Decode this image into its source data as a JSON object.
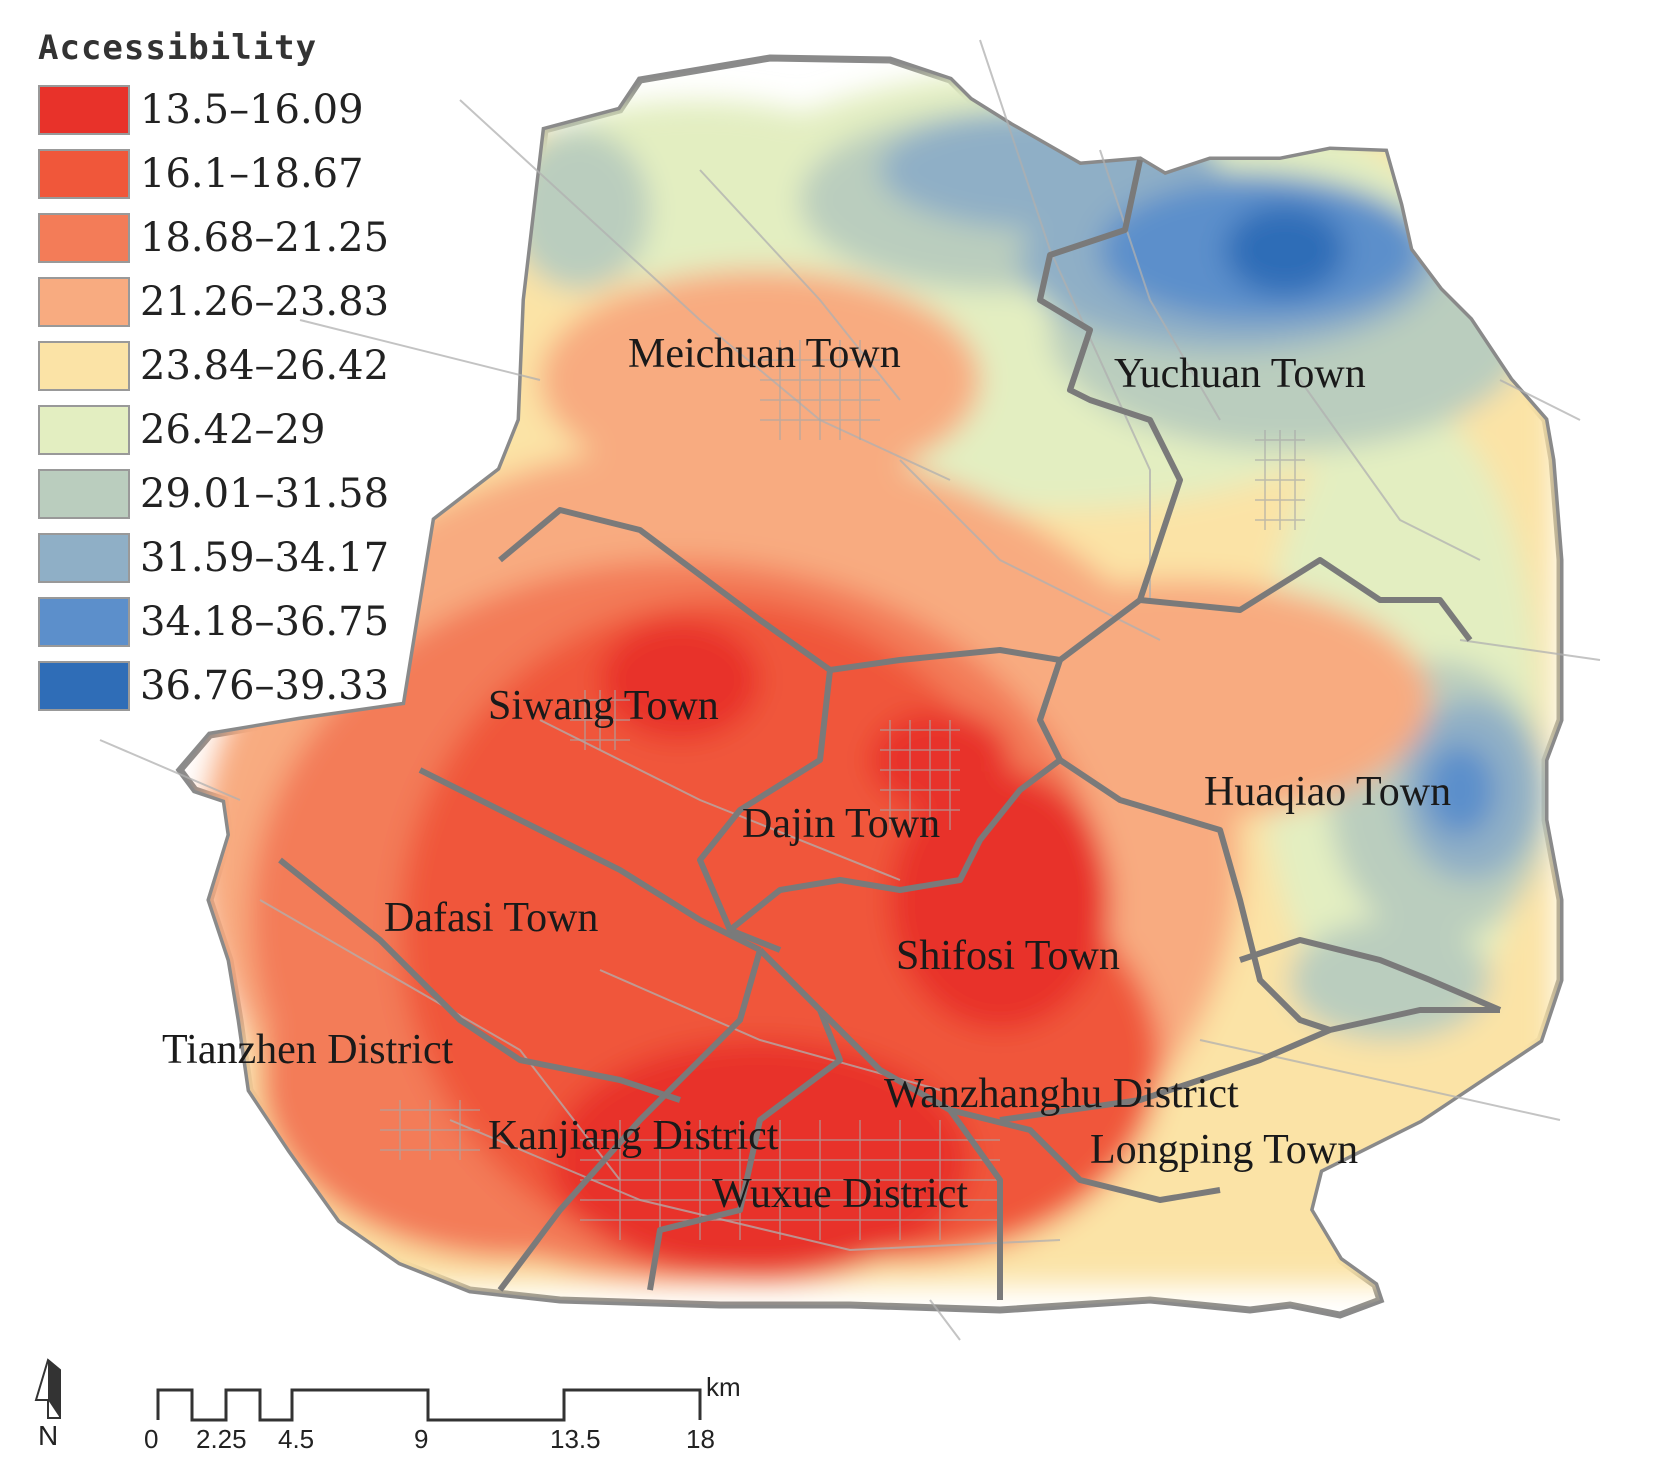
{
  "legend": {
    "title": "Accessibility",
    "classes": [
      {
        "label": "13.5–16.09",
        "color": "#e8322a"
      },
      {
        "label": "16.1–18.67",
        "color": "#f0573a"
      },
      {
        "label": "18.68–21.25",
        "color": "#f37c58"
      },
      {
        "label": "21.26–23.83",
        "color": "#f8ab80"
      },
      {
        "label": "23.84–26.42",
        "color": "#fbe3a6"
      },
      {
        "label": "26.42–29",
        "color": "#e3eec1"
      },
      {
        "label": "29.01–31.58",
        "color": "#bacdbe"
      },
      {
        "label": "31.59–34.17",
        "color": "#8fafc6"
      },
      {
        "label": "34.18–36.75",
        "color": "#5c8fcb"
      },
      {
        "label": "36.76–39.33",
        "color": "#2f6db7"
      }
    ]
  },
  "places": {
    "meichuan": "Meichuan Town",
    "yuchuan": "Yuchuan Town",
    "siwang": "Siwang Town",
    "huaqiao": "Huaqiao Town",
    "dajin": "Dajin Town",
    "dafasi": "Dafasi Town",
    "shifosi": "Shifosi Town",
    "tianzhen": "Tianzhen District",
    "wanzhanghu": "Wanzhanghu District",
    "kanjiang": "Kanjiang District",
    "longping": "Longping Town",
    "wuxue": "Wuxue District"
  },
  "north_arrow": {
    "label": "N"
  },
  "scale_bar": {
    "unit": "km",
    "ticks": [
      "0",
      "2.25",
      "4.5",
      "9",
      "13.5",
      "18"
    ]
  }
}
